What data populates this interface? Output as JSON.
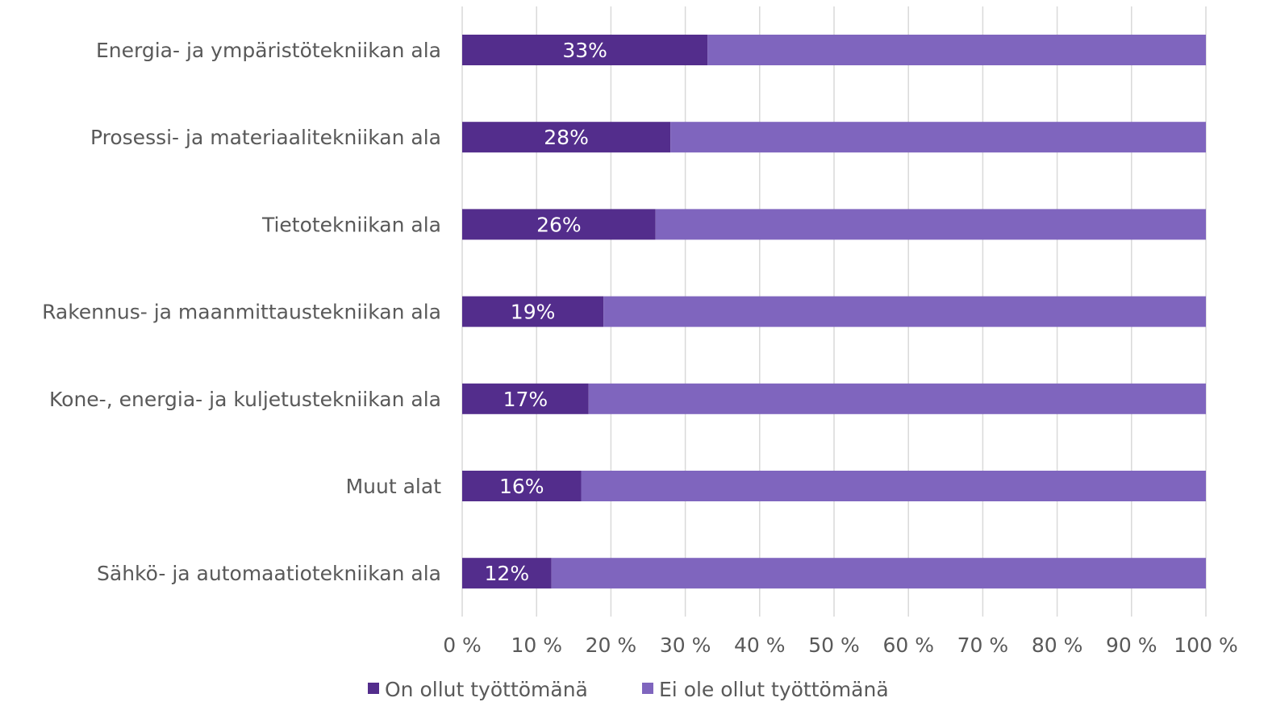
{
  "chart_data": {
    "type": "bar",
    "orientation": "horizontal",
    "stacked": "percent",
    "categories": [
      "Energia- ja ympäristötekniikan ala",
      "Prosessi- ja materiaalitekniikan ala",
      "Tietotekniikan ala",
      "Rakennus- ja maanmittaustekniikan ala",
      "Kone-, energia- ja kuljetustekniikan ala",
      "Muut alat",
      "Sähkö- ja automaatiotekniikan ala"
    ],
    "series": [
      {
        "name": "On ollut työttömänä",
        "values": [
          33,
          28,
          26,
          19,
          17,
          16,
          12
        ],
        "data_labels": [
          "33%",
          "28%",
          "26%",
          "19%",
          "17%",
          "16%",
          "12%"
        ],
        "color": "#532d8c"
      },
      {
        "name": "Ei ole ollut työttömänä",
        "values": [
          67,
          72,
          74,
          81,
          83,
          84,
          88
        ],
        "color": "#7f65be"
      }
    ],
    "x_ticks": [
      "0 %",
      "10 %",
      "20 %",
      "30 %",
      "40 %",
      "50 %",
      "60 %",
      "70 %",
      "80 %",
      "90 %",
      "100 %"
    ],
    "xlim": [
      0,
      100
    ],
    "grid": "vertical",
    "legend_position": "bottom"
  }
}
